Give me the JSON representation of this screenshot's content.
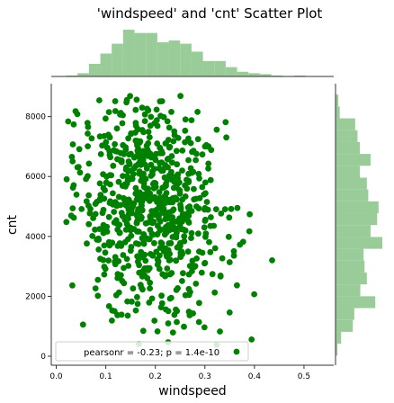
{
  "chart_data": {
    "type": "scatter",
    "title": "'windspeed' and 'cnt' Scatter Plot",
    "xlabel": "windspeed",
    "ylabel": "cnt",
    "xlim": [
      -0.01,
      0.56
    ],
    "ylim": [
      -300,
      9100
    ],
    "xticks": [
      0.0,
      0.1,
      0.2,
      0.3,
      0.4,
      0.5
    ],
    "xtick_labels": [
      "0.0",
      "0.1",
      "0.2",
      "0.3",
      "0.4",
      "0.5"
    ],
    "yticks": [
      0,
      2000,
      4000,
      6000,
      8000
    ],
    "ytick_labels": [
      "0",
      "2000",
      "4000",
      "6000",
      "8000"
    ],
    "grid": false,
    "legend": {
      "text": "pearsonr = -0.23; p = 1.4e-10",
      "position": "bottom-left"
    },
    "point_color": "#008000",
    "hist_color": "#99cc99",
    "n_points": 731,
    "x_hist": {
      "bin_edges": [
        0.02,
        0.043,
        0.066,
        0.089,
        0.112,
        0.135,
        0.158,
        0.181,
        0.204,
        0.227,
        0.25,
        0.273,
        0.296,
        0.319,
        0.342,
        0.365,
        0.388,
        0.411,
        0.434,
        0.457,
        0.48,
        0.503
      ],
      "relative_heights": [
        0.02,
        0.07,
        0.27,
        0.49,
        0.7,
        1.0,
        0.93,
        0.93,
        0.73,
        0.77,
        0.7,
        0.53,
        0.33,
        0.33,
        0.2,
        0.1,
        0.07,
        0.05,
        0.02,
        0.01,
        0.02
      ]
    },
    "y_hist": {
      "bin_edges": [
        22,
        418,
        814,
        1210,
        1606,
        2002,
        2398,
        2794,
        3190,
        3586,
        3982,
        4378,
        4774,
        5170,
        5566,
        5962,
        6358,
        6754,
        7150,
        7546,
        7942,
        8338,
        8734
      ],
      "relative_heights": [
        0.04,
        0.12,
        0.37,
        0.4,
        0.85,
        0.53,
        0.67,
        0.62,
        0.6,
        1.0,
        0.75,
        0.89,
        0.92,
        0.7,
        0.67,
        0.52,
        0.75,
        0.52,
        0.47,
        0.42,
        0.09,
        0.06
      ]
    }
  }
}
